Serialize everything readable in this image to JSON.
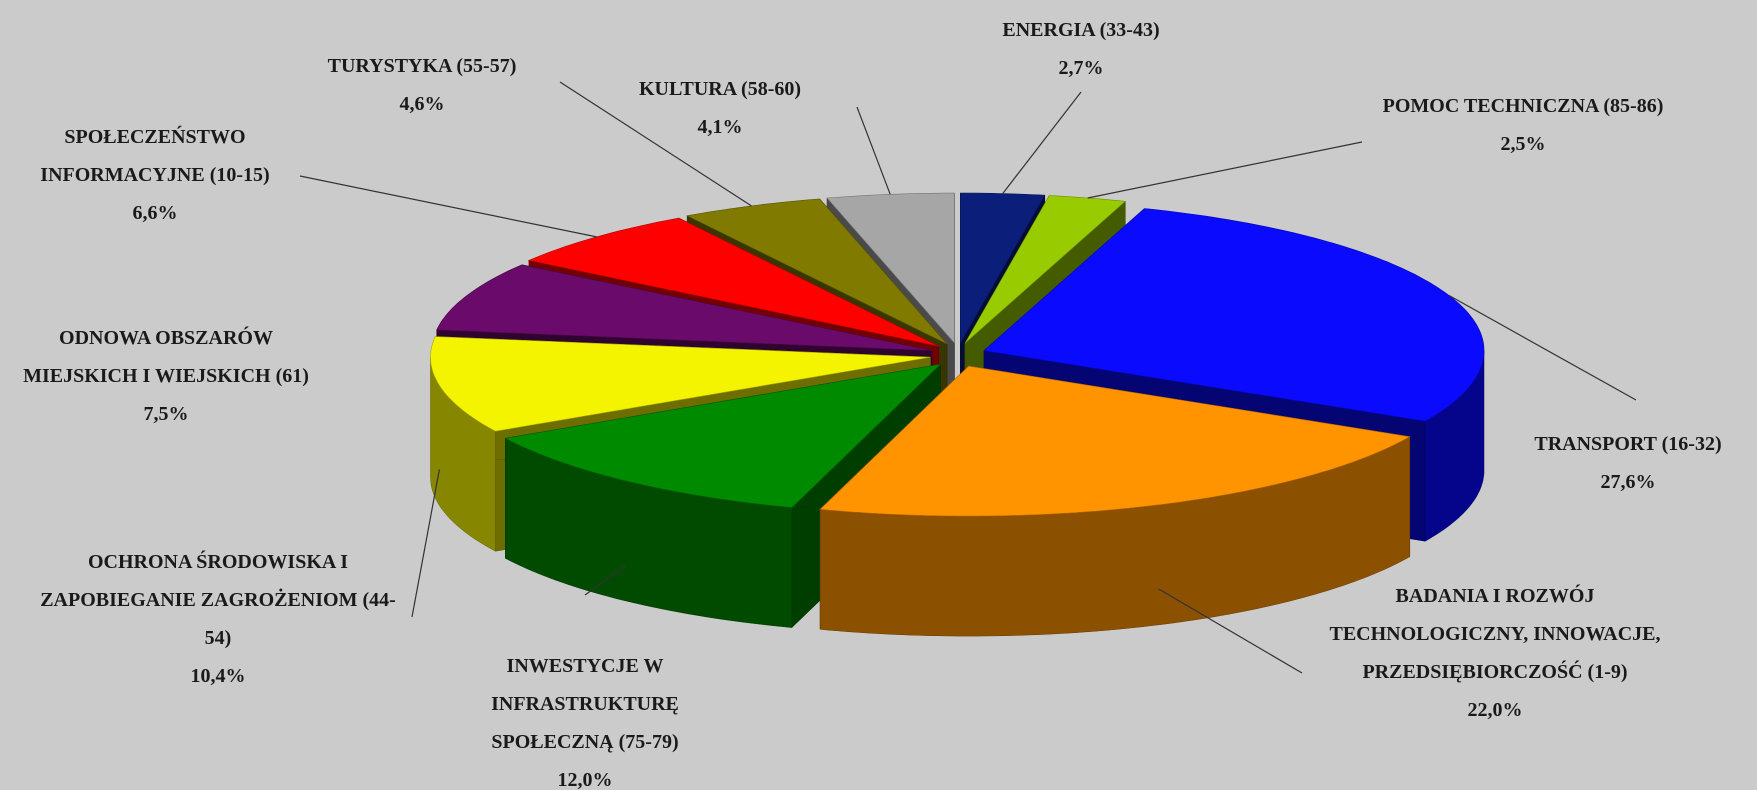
{
  "chart_data": {
    "type": "pie",
    "three_d": true,
    "exploded": true,
    "categories": [
      "ENERGIA (33-43)",
      "POMOC TECHNICZNA (85-86)",
      "TRANSPORT (16-32)",
      "BADANIA I ROZWÓJ TECHNOLOGICZNY, INNOWACJE, PRZEDSIĘBIORCZOŚĆ (1-9)",
      "INWESTYCJE W INFRASTRUKTURĘ SPOŁECZNĄ (75-79)",
      "OCHRONA ŚRODOWISKA I ZAPOBIEGANIE ZAGROŻENIOM (44-54)",
      "ODNOWA OBSZARÓW MIEJSKICH I WIEJSKICH (61)",
      "SPOŁECZEŃSTWO INFORMACYJNE (10-15)",
      "TURYSTYKA (55-57)",
      "KULTURA (58-60)"
    ],
    "values": [
      2.7,
      2.5,
      27.6,
      22.0,
      12.0,
      10.4,
      7.5,
      6.6,
      4.6,
      4.1
    ],
    "value_labels": [
      "2,7%",
      "2,5%",
      "27,6%",
      "22,0%",
      "12,0%",
      "10,4%",
      "7,5%",
      "6,6%",
      "4,6%",
      "4,1%"
    ],
    "colors": [
      "#0b1f7a",
      "#99cc00",
      "#0a0aff",
      "#ff9400",
      "#008a00",
      "#f4f400",
      "#6a0a6a",
      "#ff0000",
      "#807a00",
      "#a6a6a6"
    ]
  }
}
